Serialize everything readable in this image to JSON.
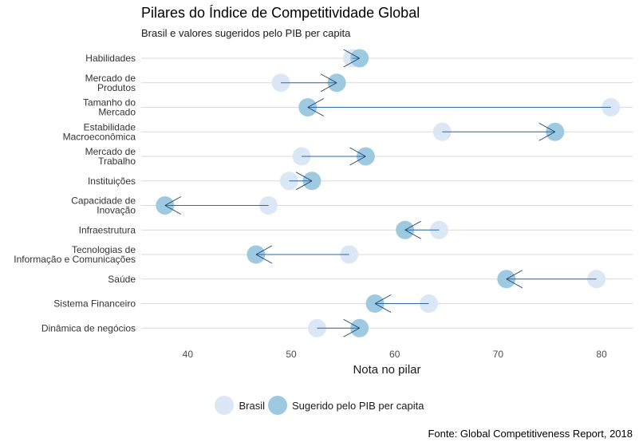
{
  "chart_data": {
    "type": "dumbbell-arrow",
    "title": "Pilares do Índice de Competitividade Global",
    "subtitle": "Brasil e valores sugeridos pelo PIB per capita",
    "xlabel": "Nota no pilar",
    "ylabel": "",
    "caption": "Fonte: Global Competitiveness Report, 2018",
    "xlim": [
      35.5,
      83
    ],
    "xticks": [
      40,
      50,
      60,
      70,
      80
    ],
    "grid": "horizontal",
    "legend_position": "bottom",
    "categories": [
      [
        "Habilidades"
      ],
      [
        "Mercado de",
        "Produtos"
      ],
      [
        "Tamanho do",
        "Mercado"
      ],
      [
        "Estabilidade",
        "Macroeconômica"
      ],
      [
        "Mercado de",
        "Trabalho"
      ],
      [
        "Instituições"
      ],
      [
        "Capacidade de",
        "Inovação"
      ],
      [
        "Infraestrutura"
      ],
      [
        "Tecnologias de",
        "Informação e Comunicações"
      ],
      [
        "Saúde"
      ],
      [
        "Sistema Financeiro"
      ],
      [
        "Dinâmica de negócios"
      ]
    ],
    "series": [
      {
        "name": "Brasil",
        "color": "#dbe7f4",
        "values": [
          55.9,
          49.0,
          80.9,
          64.6,
          51.0,
          49.8,
          47.8,
          64.3,
          55.6,
          79.5,
          63.3,
          52.5
        ]
      },
      {
        "name": "Sugerido pelo PIB per capita",
        "color": "#9ecae1",
        "values": [
          56.6,
          54.4,
          51.6,
          75.5,
          57.2,
          52.0,
          37.8,
          61.0,
          46.6,
          70.8,
          58.1,
          56.6
        ]
      }
    ],
    "arrow_color": "#2b6aa5"
  }
}
